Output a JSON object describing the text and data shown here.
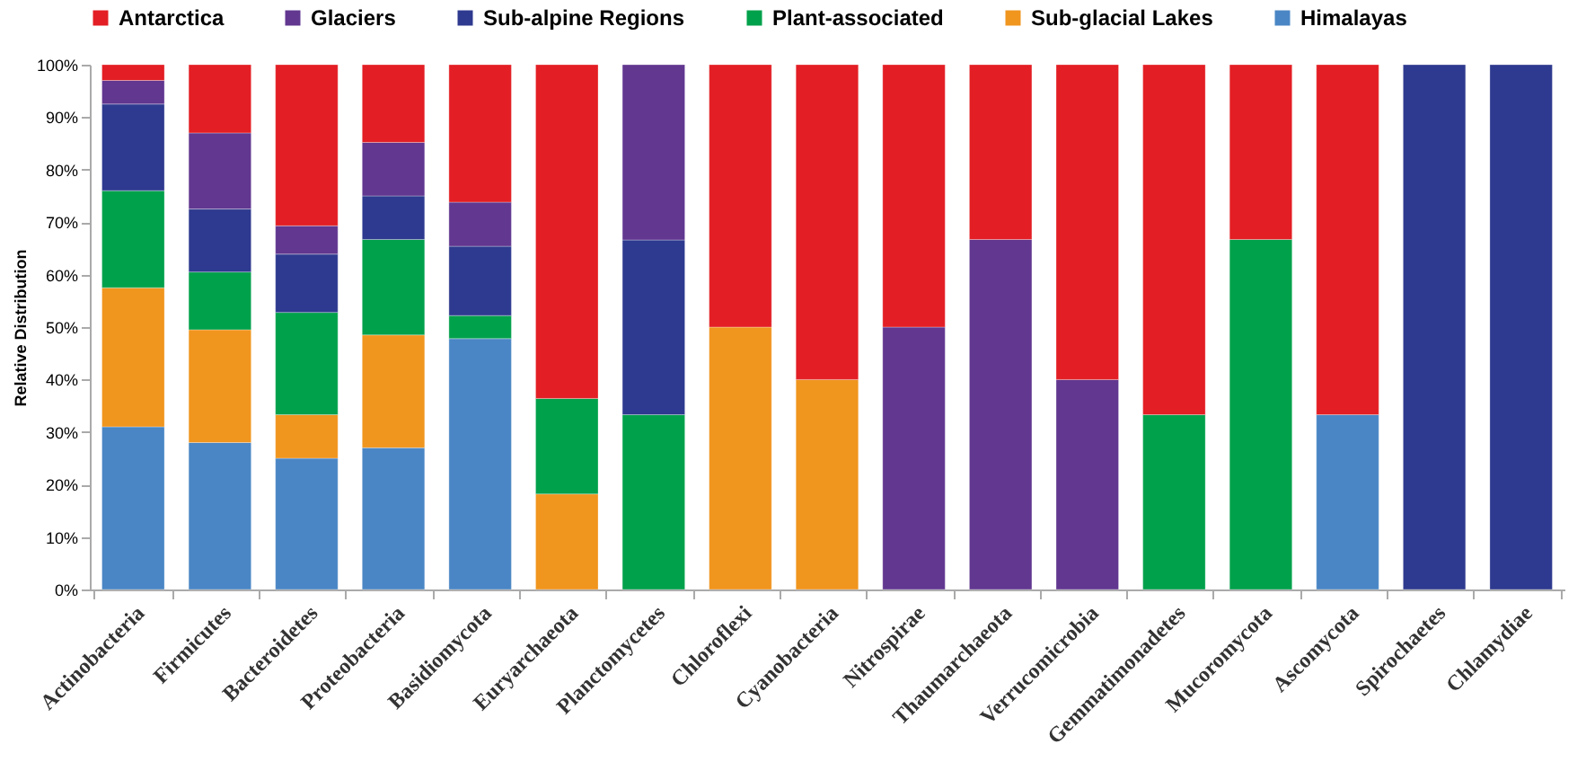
{
  "chart_data": {
    "type": "bar",
    "stacked": true,
    "ylabel": "Relative Distribution",
    "categories": [
      "Actinobacteria",
      "Firmicutes",
      "Bacteroidetes",
      "Proteobacteria",
      "Basidiomycota",
      "Euryarchaeota",
      "Planctomycetes",
      "Chloroflexi",
      "Cyanobacteria",
      "Nitrospirae",
      "Thaumarchaeota",
      "Verrucomicrobia",
      "Gemmatimonadetes",
      "Mucoromycota",
      "Ascomycota",
      "Spirochaetes",
      "Chlamydiae"
    ],
    "series": [
      {
        "name": "Himalayas",
        "color": "#4a86c5",
        "values": [
          31,
          28,
          25,
          27,
          47.8,
          null,
          null,
          null,
          null,
          null,
          null,
          null,
          null,
          null,
          33.3,
          null,
          null
        ]
      },
      {
        "name": "Sub-glacial Lakes",
        "color": "#f0951e",
        "values": [
          26.5,
          21.5,
          8.3,
          21.5,
          null,
          18.2,
          null,
          50,
          40,
          null,
          null,
          null,
          null,
          null,
          null,
          null,
          null
        ]
      },
      {
        "name": "Plant-associated",
        "color": "#00a14b",
        "values": [
          18.5,
          11,
          19.5,
          18.2,
          4.4,
          18.2,
          33.3,
          null,
          null,
          null,
          null,
          null,
          33.3,
          66.7,
          null,
          null,
          null
        ]
      },
      {
        "name": "Sub-alpine Regions",
        "color": "#2e3a8f",
        "values": [
          16.5,
          12,
          11.1,
          8.3,
          13.2,
          null,
          33.3,
          null,
          null,
          null,
          null,
          null,
          null,
          null,
          null,
          100,
          100
        ]
      },
      {
        "name": "Glaciers",
        "color": "#613790",
        "values": [
          4.5,
          14.5,
          5.4,
          10.2,
          8.4,
          null,
          33.4,
          null,
          null,
          50,
          66.7,
          40,
          null,
          null,
          null,
          null,
          null
        ]
      },
      {
        "name": "Antarctica",
        "color": "#e31e24",
        "values": [
          3,
          13,
          30.7,
          14.8,
          26.2,
          63.6,
          null,
          50,
          60,
          50,
          33.3,
          60,
          66.7,
          33.3,
          66.7,
          null,
          null
        ]
      }
    ],
    "ylim": [
      0,
      100
    ],
    "yticks": [
      {
        "value": 0,
        "label": "0%"
      },
      {
        "value": 10,
        "label": "10%"
      },
      {
        "value": 20,
        "label": "20%"
      },
      {
        "value": 30,
        "label": "30%"
      },
      {
        "value": 40,
        "label": "40%"
      },
      {
        "value": 50,
        "label": "50%"
      },
      {
        "value": 60,
        "label": "60%"
      },
      {
        "value": 70,
        "label": "70%"
      },
      {
        "value": 80,
        "label": "80%"
      },
      {
        "value": 90,
        "label": "90%"
      },
      {
        "value": 100,
        "label": "100%"
      }
    ],
    "grid": false,
    "legend": "top"
  }
}
